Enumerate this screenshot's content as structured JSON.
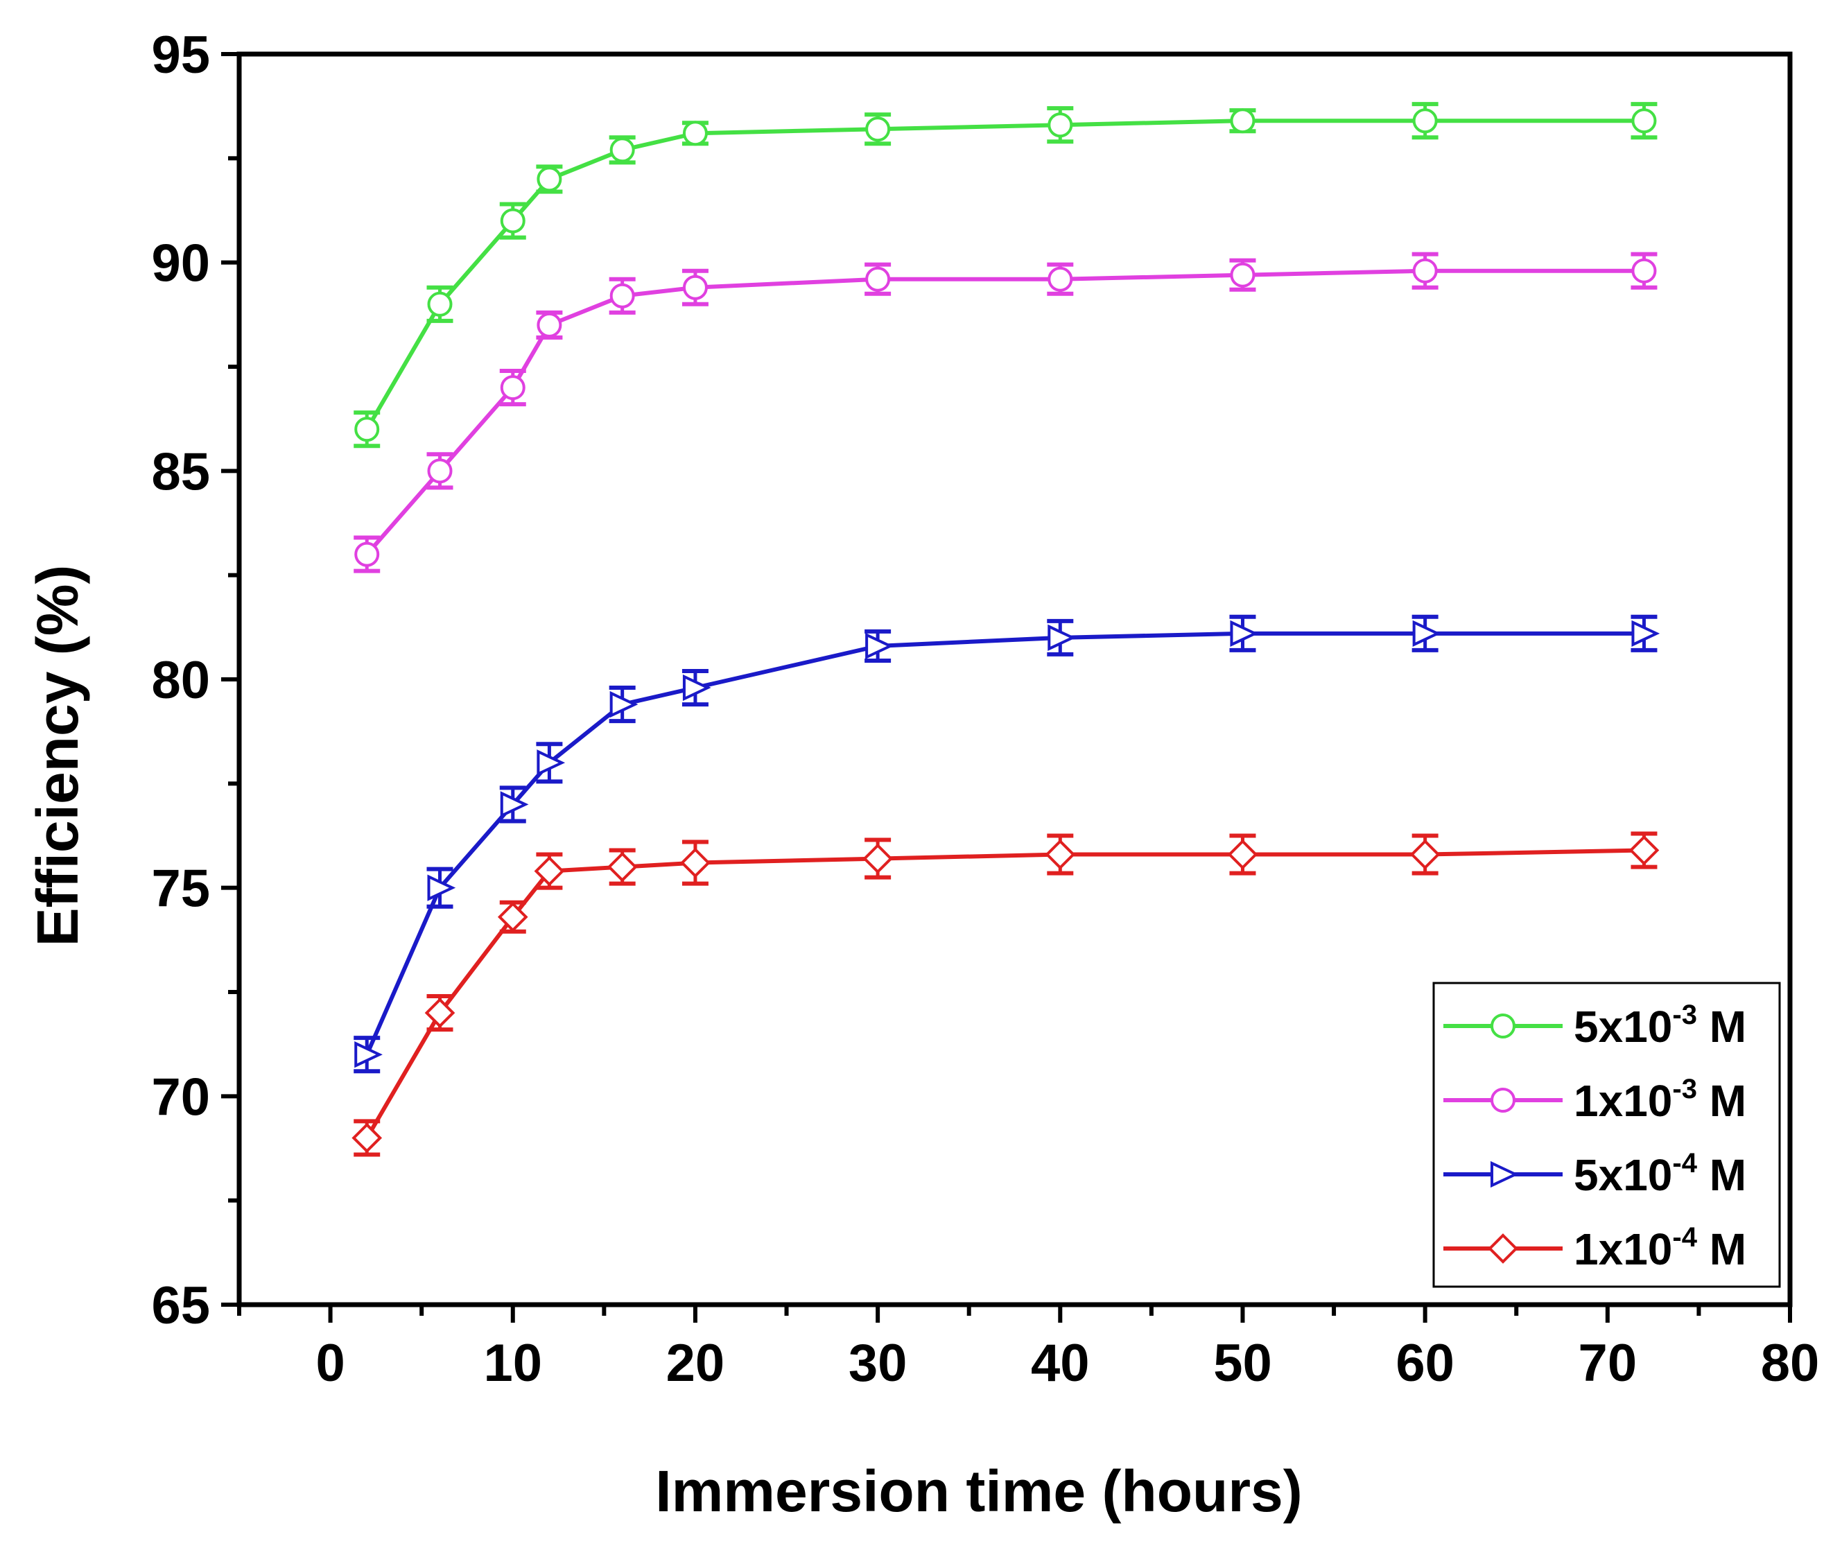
{
  "chart_data": {
    "type": "line",
    "title": "",
    "xlabel": "Immersion time (hours)",
    "ylabel": "Efficiency (%)",
    "xlim": [
      -5,
      80
    ],
    "ylim": [
      65,
      95
    ],
    "xticks": [
      0,
      10,
      20,
      30,
      40,
      50,
      60,
      70,
      80
    ],
    "yticks": [
      65,
      70,
      75,
      80,
      85,
      90,
      95
    ],
    "x": [
      2,
      6,
      10,
      12,
      16,
      20,
      30,
      40,
      50,
      60,
      72
    ],
    "legend_position": "bottom-right",
    "series": [
      {
        "name": "5x10-3 M",
        "label_base": "5x10",
        "label_exp": "-3",
        "label_unit": "M",
        "color": "#44e044",
        "marker": "circle",
        "values": [
          86.0,
          89.0,
          91.0,
          92.0,
          92.7,
          93.1,
          93.2,
          93.3,
          93.4,
          93.4,
          93.4
        ],
        "errors": [
          0.4,
          0.4,
          0.4,
          0.3,
          0.3,
          0.25,
          0.35,
          0.4,
          0.25,
          0.4,
          0.4
        ]
      },
      {
        "name": "1x10-3 M",
        "label_base": "1x10",
        "label_exp": "-3",
        "label_unit": "M",
        "color": "#e040e0",
        "marker": "circle",
        "values": [
          83.0,
          85.0,
          87.0,
          88.5,
          89.2,
          89.4,
          89.6,
          89.6,
          89.7,
          89.8,
          89.8
        ],
        "errors": [
          0.4,
          0.4,
          0.4,
          0.3,
          0.4,
          0.4,
          0.35,
          0.35,
          0.35,
          0.4,
          0.4
        ]
      },
      {
        "name": "5x10-4 M",
        "label_base": "5x10",
        "label_exp": "-4",
        "label_unit": "M",
        "color": "#1a1ac8",
        "marker": "triangle-right",
        "values": [
          71.0,
          75.0,
          77.0,
          78.0,
          79.4,
          79.8,
          80.8,
          81.0,
          81.1,
          81.1,
          81.1
        ],
        "errors": [
          0.4,
          0.45,
          0.4,
          0.45,
          0.4,
          0.4,
          0.35,
          0.4,
          0.4,
          0.4,
          0.4
        ]
      },
      {
        "name": "1x10-4 M",
        "label_base": "1x10",
        "label_exp": "-4",
        "label_unit": "M",
        "color": "#e02020",
        "marker": "diamond",
        "values": [
          69.0,
          72.0,
          74.3,
          75.4,
          75.5,
          75.6,
          75.7,
          75.8,
          75.8,
          75.8,
          75.9
        ],
        "errors": [
          0.4,
          0.4,
          0.35,
          0.4,
          0.4,
          0.5,
          0.45,
          0.45,
          0.45,
          0.45,
          0.4
        ]
      }
    ]
  }
}
